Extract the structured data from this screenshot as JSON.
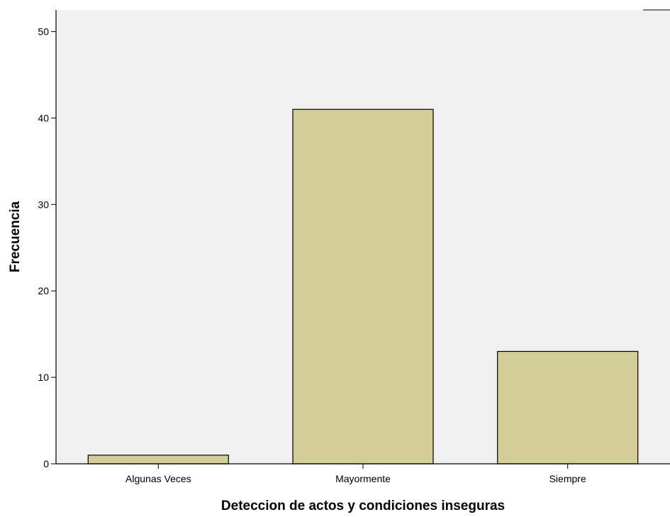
{
  "chart_data": {
    "type": "bar",
    "title": "",
    "xlabel": "Deteccion de actos y condiciones inseguras",
    "ylabel": "Frecuencia",
    "categories": [
      "Algunas Veces",
      "Mayormente",
      "Siempre"
    ],
    "values": [
      1,
      41,
      13
    ],
    "ylim": [
      0,
      52.5
    ],
    "yticks": [
      0,
      10,
      20,
      30,
      40,
      50
    ],
    "ytick_labels": [
      "0",
      "10",
      "20",
      "30",
      "40",
      "50"
    ],
    "grid": false,
    "legend": "none",
    "colors": {
      "bar_fill": "#d3ce98",
      "bar_stroke": "#000000",
      "plot_background": "#f0f0f0",
      "axis": "#000000"
    }
  }
}
